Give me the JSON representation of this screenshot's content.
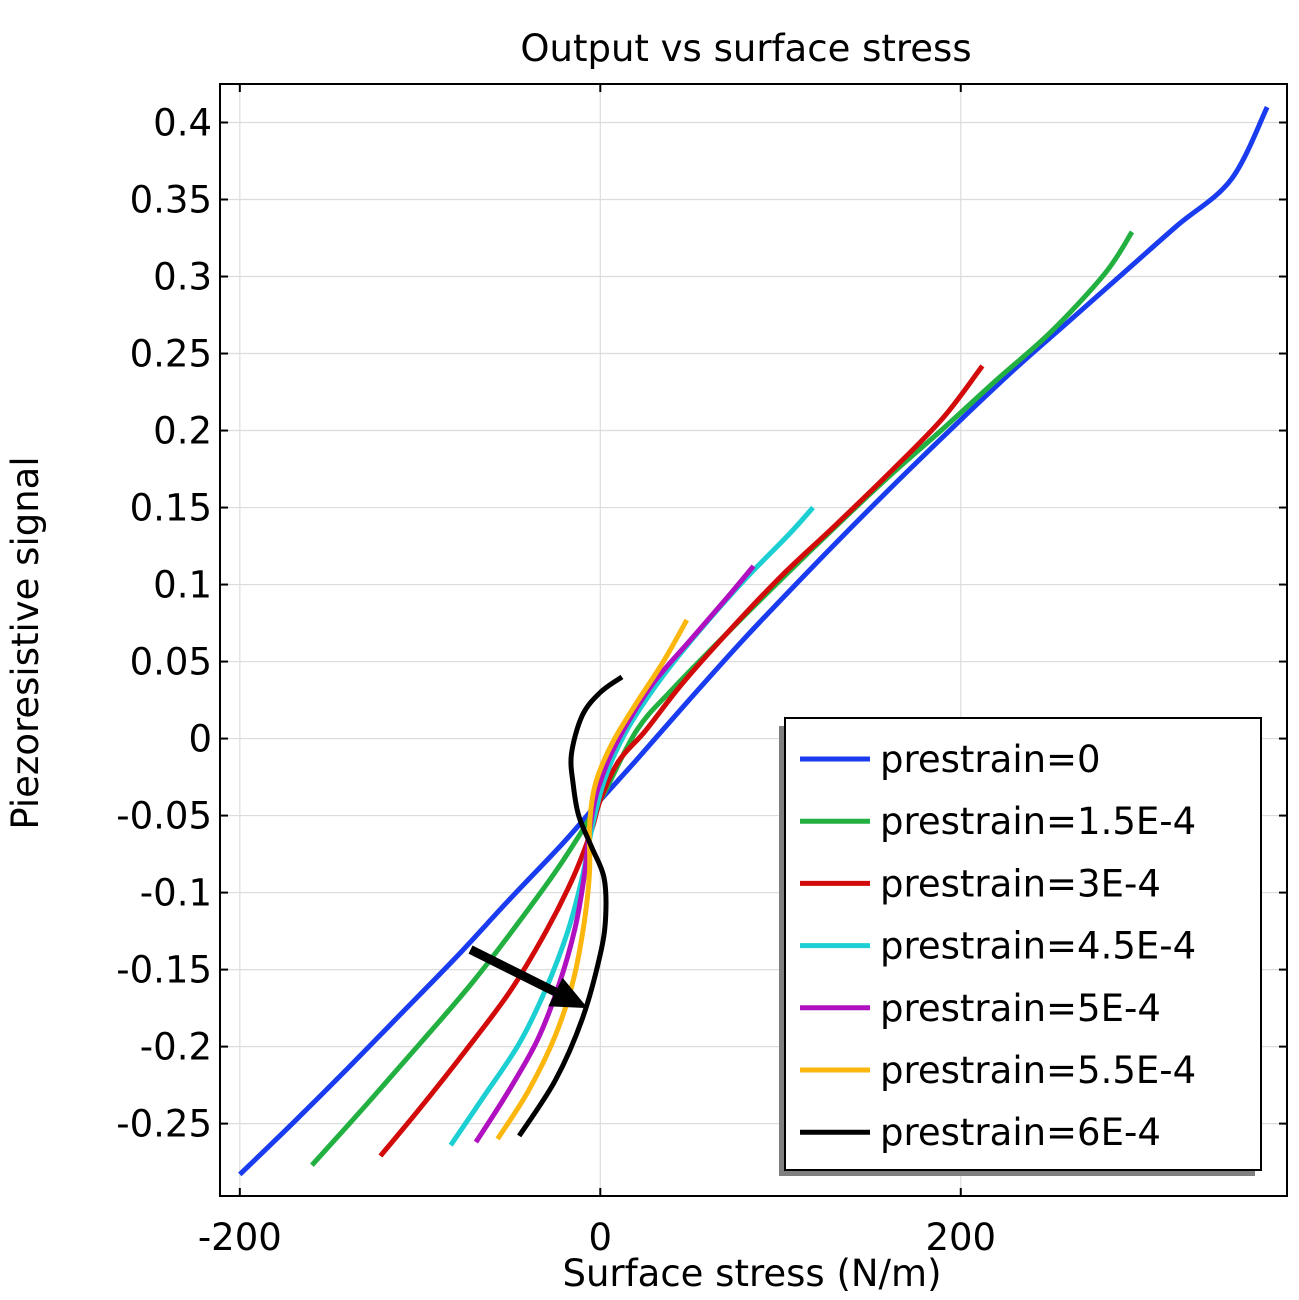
{
  "chart_data": {
    "type": "line",
    "title": "Output vs surface stress",
    "xlabel": "Surface stress (N/m)",
    "ylabel": "Piezoresistive signal",
    "xlim": [
      -211,
      381
    ],
    "ylim": [
      -0.297,
      0.425
    ],
    "xticks": [
      -200,
      0,
      200
    ],
    "xtick_labels": [
      "-200",
      "0",
      "200"
    ],
    "yticks": [
      0.4,
      0.35,
      0.3,
      0.25,
      0.2,
      0.15,
      0.1,
      0.05,
      0,
      -0.05,
      -0.1,
      -0.15,
      -0.2,
      -0.25
    ],
    "ytick_labels": [
      "0.4",
      "0.35",
      "0.3",
      "0.25",
      "0.2",
      "0.15",
      "0.1",
      "0.05",
      "0",
      "-0.05",
      "-0.1",
      "-0.15",
      "-0.2",
      "-0.25"
    ],
    "grid": true,
    "legend_position": "bottom-right",
    "series": [
      {
        "name": "prestrain=0",
        "color": "#1a3cf0",
        "x": [
          -200,
          -170,
          -140,
          -110,
          -80,
          -50,
          -20,
          0,
          20,
          50,
          80,
          110,
          140,
          170,
          200,
          230,
          260,
          290,
          320,
          350,
          370
        ],
        "y": [
          -0.283,
          -0.249,
          -0.214,
          -0.178,
          -0.142,
          -0.104,
          -0.067,
          -0.04,
          -0.014,
          0.026,
          0.065,
          0.102,
          0.138,
          0.173,
          0.207,
          0.24,
          0.271,
          0.302,
          0.333,
          0.363,
          0.41
        ]
      },
      {
        "name": "prestrain=1.5E-4",
        "color": "#22b040",
        "x": [
          -160,
          -130,
          -100,
          -70,
          -40,
          -20,
          0,
          20,
          40,
          70,
          100,
          130,
          160,
          190,
          220,
          250,
          280,
          295
        ],
        "y": [
          -0.277,
          -0.238,
          -0.198,
          -0.157,
          -0.111,
          -0.078,
          -0.04,
          0.005,
          0.032,
          0.068,
          0.103,
          0.137,
          0.17,
          0.201,
          0.233,
          0.264,
          0.302,
          0.329
        ]
      },
      {
        "name": "prestrain=3E-4",
        "color": "#d20a0a",
        "x": [
          -122,
          -100,
          -75,
          -50,
          -30,
          -15,
          -5,
          0,
          10,
          25,
          45,
          70,
          100,
          130,
          160,
          190,
          212
        ],
        "y": [
          -0.271,
          -0.24,
          -0.203,
          -0.164,
          -0.125,
          -0.09,
          -0.06,
          -0.04,
          -0.015,
          0.005,
          0.035,
          0.068,
          0.105,
          0.138,
          0.172,
          0.208,
          0.242
        ]
      },
      {
        "name": "prestrain=4.5E-4",
        "color": "#1bcfd2",
        "x": [
          -83,
          -65,
          -45,
          -30,
          -18,
          -10,
          -5,
          -1,
          2,
          8,
          18,
          35,
          55,
          80,
          105,
          118
        ],
        "y": [
          -0.264,
          -0.233,
          -0.198,
          -0.162,
          -0.125,
          -0.09,
          -0.06,
          -0.04,
          -0.028,
          -0.01,
          0.012,
          0.041,
          0.07,
          0.103,
          0.133,
          0.15
        ]
      },
      {
        "name": "prestrain=5E-4",
        "color": "#b010c0",
        "x": [
          -69,
          -52,
          -35,
          -23,
          -14,
          -9,
          -6,
          -3,
          0,
          6,
          16,
          30,
          50,
          70,
          85
        ],
        "y": [
          -0.262,
          -0.231,
          -0.196,
          -0.16,
          -0.123,
          -0.09,
          -0.06,
          -0.04,
          -0.028,
          -0.01,
          0.012,
          0.037,
          0.064,
          0.091,
          0.112
        ]
      },
      {
        "name": "prestrain=5.5E-4",
        "color": "#fbb70e",
        "x": [
          -57,
          -40,
          -25,
          -15,
          -9,
          -6,
          -6,
          -4,
          0,
          8,
          20,
          35,
          48
        ],
        "y": [
          -0.26,
          -0.229,
          -0.193,
          -0.157,
          -0.12,
          -0.087,
          -0.058,
          -0.036,
          -0.02,
          0.0,
          0.023,
          0.05,
          0.077
        ]
      },
      {
        "name": "prestrain=6E-4",
        "color": "#000000",
        "x": [
          -45,
          -25,
          -10,
          0,
          3,
          2,
          -5,
          -12,
          -15,
          -16,
          -10,
          0,
          12
        ],
        "y": [
          -0.258,
          -0.222,
          -0.182,
          -0.14,
          -0.115,
          -0.09,
          -0.07,
          -0.05,
          -0.03,
          -0.01,
          0.015,
          0.03,
          0.04
        ]
      }
    ],
    "annotations": [
      {
        "type": "arrow",
        "color": "#000000",
        "from": [
          -72,
          -0.137
        ],
        "to": [
          -7,
          -0.175
        ]
      }
    ]
  }
}
